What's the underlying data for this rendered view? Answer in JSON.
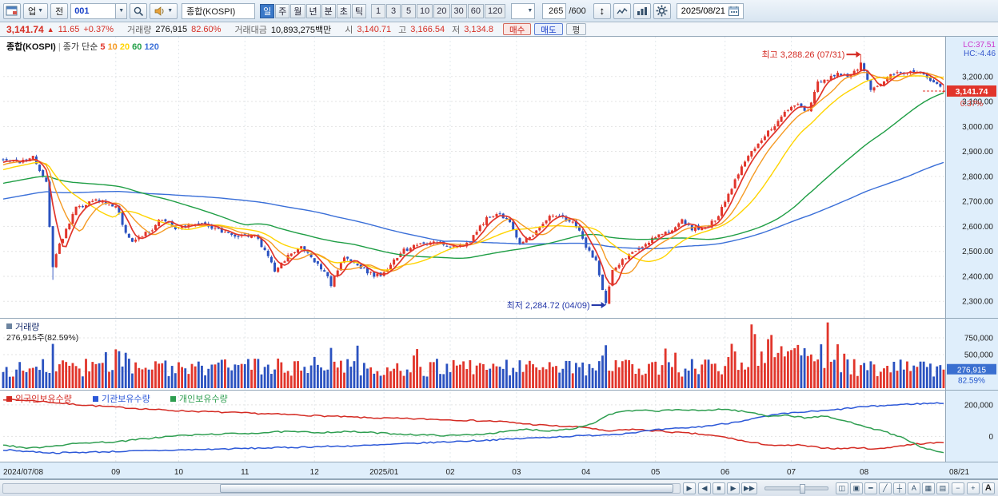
{
  "colors": {
    "up": "#e1352b",
    "down": "#2b52c0",
    "axis_bg": "#dfeefb",
    "badge_price": "#e1352b",
    "badge_volume": "#3a6fd0",
    "lc": "#cc33cc",
    "hc": "#3355cc"
  },
  "toolbar": {
    "industry_label": "업",
    "all_label": "전",
    "code_value": "001",
    "symbol_name": "종합(KOSPI)",
    "periods": [
      "일",
      "주",
      "월",
      "년",
      "분",
      "초",
      "틱"
    ],
    "active_period": "일",
    "intervals": [
      "1",
      "3",
      "5",
      "10",
      "20",
      "30",
      "60",
      "120"
    ],
    "candle_count": "265",
    "candle_max": "/600",
    "date": "2025/08/21"
  },
  "quote": {
    "price": "3,141.74",
    "arrow": "▲",
    "change": "11.65",
    "change_pct": "+0.37%",
    "volume_label": "거래량",
    "volume": "276,915",
    "volume_pct": "82.60%",
    "value_label": "거래대금",
    "value": "10,893,275백만",
    "open_label": "시",
    "open": "3,140.71",
    "high_label": "고",
    "high": "3,166.54",
    "low_label": "저",
    "low": "3,134.8",
    "buy_label": "매수",
    "sell_label": "매도",
    "avg_label": "평"
  },
  "chart_data": {
    "type": "candlestick",
    "title": "종합(KOSPI)",
    "legend_prefix": "종가 단순",
    "mas": [
      {
        "period": 5,
        "label": "5",
        "color": "#e1352b"
      },
      {
        "period": 10,
        "label": "10",
        "color": "#f59a23"
      },
      {
        "period": 20,
        "label": "20",
        "color": "#ffd400"
      },
      {
        "period": 60,
        "label": "60",
        "color": "#1f9e45"
      },
      {
        "period": 120,
        "label": "120",
        "color": "#3a6fd8"
      }
    ],
    "lc_label": "LC:37.51",
    "hc_label": "HC:-4.46",
    "price_axis": {
      "min": 2240,
      "max": 3340,
      "ticks": [
        2300,
        2400,
        2500,
        2600,
        2700,
        2800,
        2900,
        3000,
        3100,
        3200
      ]
    },
    "days": 285,
    "pre_anchors": [
      [
        -120,
        2560
      ],
      [
        -80,
        2680
      ],
      [
        -40,
        2740
      ],
      [
        -20,
        2790
      ],
      [
        0,
        2862
      ]
    ],
    "close_anchors": [
      [
        0,
        2862
      ],
      [
        5,
        2858
      ],
      [
        9,
        2882
      ],
      [
        13,
        2776
      ],
      [
        14,
        2600
      ],
      [
        15,
        2442
      ],
      [
        17,
        2528
      ],
      [
        22,
        2672
      ],
      [
        28,
        2702
      ],
      [
        34,
        2684
      ],
      [
        37,
        2578
      ],
      [
        39,
        2544
      ],
      [
        44,
        2578
      ],
      [
        48,
        2632
      ],
      [
        52,
        2594
      ],
      [
        57,
        2612
      ],
      [
        62,
        2602
      ],
      [
        67,
        2576
      ],
      [
        72,
        2560
      ],
      [
        76,
        2566
      ],
      [
        80,
        2482
      ],
      [
        82,
        2424
      ],
      [
        86,
        2482
      ],
      [
        90,
        2522
      ],
      [
        94,
        2456
      ],
      [
        97,
        2422
      ],
      [
        99,
        2368
      ],
      [
        103,
        2482
      ],
      [
        107,
        2442
      ],
      [
        112,
        2402
      ],
      [
        114,
        2408
      ],
      [
        117,
        2442
      ],
      [
        120,
        2498
      ],
      [
        125,
        2528
      ],
      [
        130,
        2542
      ],
      [
        134,
        2522
      ],
      [
        137,
        2512
      ],
      [
        141,
        2542
      ],
      [
        146,
        2632
      ],
      [
        149,
        2656
      ],
      [
        153,
        2622
      ],
      [
        156,
        2532
      ],
      [
        160,
        2562
      ],
      [
        165,
        2642
      ],
      [
        169,
        2638
      ],
      [
        173,
        2602
      ],
      [
        176,
        2522
      ],
      [
        179,
        2462
      ],
      [
        181,
        2342
      ],
      [
        182,
        2293
      ],
      [
        184,
        2432
      ],
      [
        188,
        2472
      ],
      [
        193,
        2522
      ],
      [
        197,
        2562
      ],
      [
        202,
        2582
      ],
      [
        205,
        2622
      ],
      [
        208,
        2592
      ],
      [
        212,
        2592
      ],
      [
        216,
        2642
      ],
      [
        218,
        2702
      ],
      [
        222,
        2812
      ],
      [
        226,
        2902
      ],
      [
        230,
        2962
      ],
      [
        234,
        3022
      ],
      [
        237,
        3072
      ],
      [
        240,
        3082
      ],
      [
        243,
        3062
      ],
      [
        246,
        3182
      ],
      [
        249,
        3192
      ],
      [
        252,
        3212
      ],
      [
        255,
        3202
      ],
      [
        258,
        3232
      ],
      [
        259,
        3248
      ],
      [
        262,
        3152
      ],
      [
        265,
        3178
      ],
      [
        268,
        3202
      ],
      [
        272,
        3218
      ],
      [
        276,
        3222
      ],
      [
        279,
        3192
      ],
      [
        282,
        3172
      ],
      [
        283,
        3162
      ],
      [
        284,
        3141.74
      ]
    ],
    "special": [
      {
        "day": 15,
        "low": 2386
      },
      {
        "day": 182,
        "close": 2293,
        "low": 2284.72
      },
      {
        "day": 259,
        "high": 3288.26
      }
    ],
    "last": {
      "open": 3140.71,
      "high": 3166.54,
      "low": 3134.8,
      "close": 3141.74,
      "pct_label": "0.37%",
      "price_label": "3,141.74"
    },
    "annotations": {
      "high": {
        "text": "최고 3,288.26 (07/31)",
        "day": 259,
        "value": 3288.26
      },
      "low": {
        "text": "최저 2,284.72 (04/09)",
        "day": 182,
        "value": 2284.72
      }
    },
    "volume_pane": {
      "legend": "거래량",
      "current_text": "276,915주(82.59%)",
      "axis_labels": [
        750000,
        500000
      ],
      "gridlines": [
        250000,
        500000,
        750000
      ],
      "max": 1000000,
      "last": 276915,
      "badge": "276,915",
      "badge_pct": "82.59%",
      "spikes": [
        [
          15,
          660000
        ],
        [
          99,
          600000
        ],
        [
          182,
          640000
        ],
        [
          226,
          950000
        ],
        [
          227,
          806000
        ],
        [
          231,
          730000
        ]
      ],
      "boost_range": [
        218,
        252
      ],
      "boost": 1.55
    },
    "holdings_pane": {
      "series": [
        {
          "name": "외국인보유수량",
          "color": "#d42a22",
          "anchors": [
            [
              0,
              235000
            ],
            [
              10,
              225000
            ],
            [
              20,
              205000
            ],
            [
              34,
              185000
            ],
            [
              50,
              165000
            ],
            [
              70,
              150000
            ],
            [
              90,
              135000
            ],
            [
              110,
              118000
            ],
            [
              130,
              108000
            ],
            [
              150,
              95000
            ],
            [
              160,
              75000
            ],
            [
              170,
              62000
            ],
            [
              176,
              58000
            ],
            [
              182,
              32000
            ],
            [
              190,
              45000
            ],
            [
              200,
              30000
            ],
            [
              210,
              15000
            ],
            [
              218,
              -5000
            ],
            [
              226,
              -40000
            ],
            [
              234,
              -60000
            ],
            [
              240,
              -55000
            ],
            [
              246,
              -70000
            ],
            [
              252,
              -78000
            ],
            [
              258,
              -72000
            ],
            [
              264,
              -80000
            ],
            [
              270,
              -62000
            ],
            [
              276,
              -48000
            ],
            [
              284,
              -38000
            ]
          ]
        },
        {
          "name": "기관보유수량",
          "color": "#2c58d8",
          "anchors": [
            [
              0,
              -85000
            ],
            [
              15,
              -105000
            ],
            [
              30,
              -98000
            ],
            [
              50,
              -88000
            ],
            [
              70,
              -78000
            ],
            [
              90,
              -68000
            ],
            [
              110,
              -58000
            ],
            [
              130,
              -38000
            ],
            [
              145,
              -25000
            ],
            [
              155,
              -15000
            ],
            [
              165,
              -5000
            ],
            [
              176,
              5000
            ],
            [
              186,
              15000
            ],
            [
              197,
              40000
            ],
            [
              210,
              60000
            ],
            [
              218,
              80000
            ],
            [
              226,
              110000
            ],
            [
              234,
              140000
            ],
            [
              242,
              155000
            ],
            [
              250,
              165000
            ],
            [
              258,
              185000
            ],
            [
              266,
              195000
            ],
            [
              274,
              205000
            ],
            [
              284,
              212000
            ]
          ]
        },
        {
          "name": "개인보유수량",
          "color": "#2e9e50",
          "anchors": [
            [
              0,
              -55000
            ],
            [
              8,
              -75000
            ],
            [
              15,
              -60000
            ],
            [
              25,
              -40000
            ],
            [
              34,
              -35000
            ],
            [
              45,
              -10000
            ],
            [
              53,
              5000
            ],
            [
              65,
              15000
            ],
            [
              75,
              20000
            ],
            [
              85,
              30000
            ],
            [
              95,
              25000
            ],
            [
              105,
              30000
            ],
            [
              115,
              20000
            ],
            [
              125,
              10000
            ],
            [
              135,
              5000
            ],
            [
              145,
              15000
            ],
            [
              152,
              30000
            ],
            [
              158,
              45000
            ],
            [
              165,
              35000
            ],
            [
              172,
              50000
            ],
            [
              178,
              80000
            ],
            [
              182,
              130000
            ],
            [
              186,
              155000
            ],
            [
              192,
              165000
            ],
            [
              197,
              160000
            ],
            [
              204,
              170000
            ],
            [
              210,
              162000
            ],
            [
              216,
              172000
            ],
            [
              220,
              168000
            ],
            [
              226,
              150000
            ],
            [
              231,
              128000
            ],
            [
              236,
              135000
            ],
            [
              242,
              118000
            ],
            [
              248,
              128000
            ],
            [
              252,
              108000
            ],
            [
              258,
              78000
            ],
            [
              263,
              48000
            ],
            [
              268,
              18000
            ],
            [
              273,
              -20000
            ],
            [
              277,
              -70000
            ],
            [
              281,
              -90000
            ],
            [
              284,
              -105000
            ]
          ]
        }
      ],
      "axis_labels": [
        200000,
        0
      ],
      "range": [
        -150000,
        275000
      ]
    },
    "x_ticks": [
      {
        "day": 0,
        "label": "2024/07/08",
        "align": "start"
      },
      {
        "day": 34,
        "label": "09"
      },
      {
        "day": 53,
        "label": "10"
      },
      {
        "day": 73,
        "label": "11"
      },
      {
        "day": 94,
        "label": "12"
      },
      {
        "day": 115,
        "label": "2025/01"
      },
      {
        "day": 135,
        "label": "02"
      },
      {
        "day": 155,
        "label": "03"
      },
      {
        "day": 176,
        "label": "04"
      },
      {
        "day": 197,
        "label": "05"
      },
      {
        "day": 218,
        "label": "06"
      },
      {
        "day": 238,
        "label": "07"
      },
      {
        "day": 260,
        "label": "08"
      },
      {
        "day": 284,
        "label": "08/21",
        "axis": true
      }
    ]
  },
  "statusbar": {
    "scroll_right": "▶",
    "nav": [
      "◀",
      "■",
      "▶",
      "▶▶"
    ],
    "tools": [
      {
        "name": "screen-split-icon",
        "glyph": "◫"
      },
      {
        "name": "save-chart-icon",
        "glyph": "▣"
      },
      {
        "name": "horizontal-line-tool-icon",
        "glyph": "━"
      },
      {
        "name": "trendline-tool-icon",
        "glyph": "╱"
      },
      {
        "name": "crosshair-tool-icon",
        "glyph": "┼"
      },
      {
        "name": "text-tool-icon",
        "glyph": "A"
      },
      {
        "name": "grid-tool-icon",
        "glyph": "▦"
      },
      {
        "name": "chart-list-icon",
        "glyph": "▤"
      }
    ],
    "zoom_out": "−",
    "zoom_in": "+",
    "font_size": "A"
  }
}
